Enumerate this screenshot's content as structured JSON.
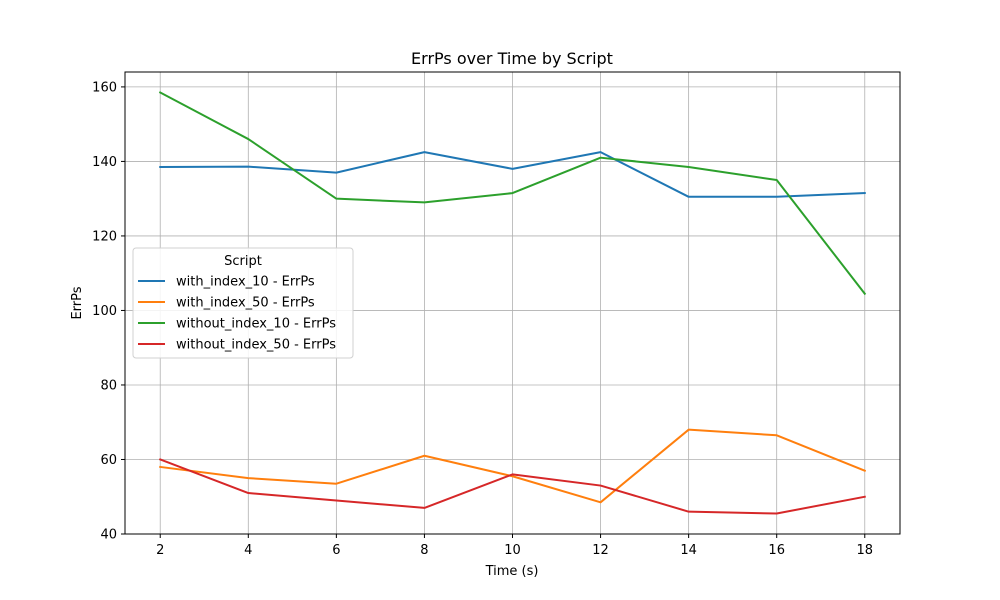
{
  "chart_data": {
    "type": "line",
    "title": "ErrPs over Time by Script",
    "xlabel": "Time (s)",
    "ylabel": "ErrPs",
    "x": [
      2,
      4,
      6,
      8,
      10,
      12,
      14,
      16,
      18
    ],
    "xticks": [
      2,
      4,
      6,
      8,
      10,
      12,
      14,
      16,
      18
    ],
    "yticks": [
      40,
      60,
      80,
      100,
      120,
      140,
      160
    ],
    "xlim": [
      1.2,
      18.8
    ],
    "ylim": [
      40,
      164
    ],
    "grid": true,
    "legend": {
      "title": "Script",
      "placement": "center-left"
    },
    "series": [
      {
        "name": "with_index_10 - ErrPs",
        "color": "#1f77b4",
        "values": [
          138.5,
          138.6,
          137.0,
          142.5,
          138.0,
          142.5,
          130.5,
          130.5,
          131.5
        ]
      },
      {
        "name": "with_index_50 - ErrPs",
        "color": "#ff7f0e",
        "values": [
          58.0,
          55.0,
          53.5,
          61.0,
          55.5,
          48.5,
          68.0,
          66.5,
          57.0
        ]
      },
      {
        "name": "without_index_10 - ErrPs",
        "color": "#2ca02c",
        "values": [
          158.5,
          146.0,
          130.0,
          129.0,
          131.5,
          141.0,
          138.5,
          135.0,
          104.5
        ]
      },
      {
        "name": "without_index_50 - ErrPs",
        "color": "#d62728",
        "values": [
          60.0,
          51.0,
          49.0,
          47.0,
          56.0,
          53.0,
          46.0,
          45.5,
          50.0
        ]
      }
    ]
  }
}
